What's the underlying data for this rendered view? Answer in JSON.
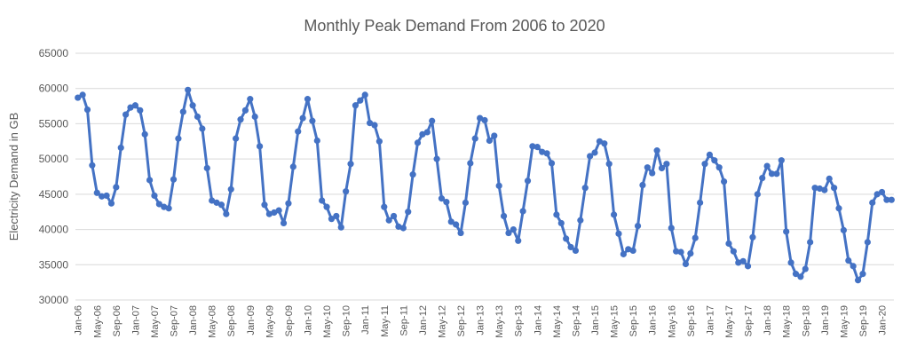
{
  "chart_data": {
    "type": "line",
    "title": "Monthly Peak Demand From 2006 to 2020",
    "xlabel": "",
    "ylabel": "Electricity Demand  in GB",
    "ylim": [
      30000,
      65000
    ],
    "y_ticks": [
      "30000",
      "35000",
      "40000",
      "45000",
      "50000",
      "55000",
      "60000",
      "65000"
    ],
    "grid": true,
    "legend": "none",
    "line_color": "#4472c4",
    "x_tick_labels": [
      "Jan-06",
      "May-06",
      "Sep-06",
      "Jan-07",
      "May-07",
      "Sep-07",
      "Jan-08",
      "May-08",
      "Sep-08",
      "Jan-09",
      "May-09",
      "Sep-09",
      "Jan-10",
      "May-10",
      "Sep-10",
      "Jan-11",
      "May-11",
      "Sep-11",
      "Jan-12",
      "May-12",
      "Sep-12",
      "Jan-13",
      "May-13",
      "Sep-13",
      "Jan-14",
      "May-14",
      "Sep-14",
      "Jan-15",
      "May-15",
      "Sep-15",
      "Jan-16",
      "May-16",
      "Sep-16",
      "Jan-17",
      "May-17",
      "Sep-17",
      "Jan-18",
      "May-18",
      "Sep-18",
      "Jan-19",
      "May-19",
      "Sep-19",
      "Jan-20"
    ],
    "x_start": "Jan-06",
    "x_end": "Feb-20",
    "series": [
      {
        "values": [
          58700,
          59100,
          57000,
          49100,
          45200,
          44700,
          44800,
          43700,
          46000,
          51600,
          56300,
          57300,
          57600,
          56900,
          53500,
          47000,
          44800,
          43600,
          43200,
          43000,
          47100,
          52900,
          56700,
          59800,
          57600,
          56000,
          54300,
          48700,
          44100,
          43800,
          43500,
          42200,
          45700,
          52900,
          55600,
          56900,
          58500,
          56000,
          51800,
          43500,
          42200,
          42400,
          42700,
          40900,
          43700,
          48900,
          53900,
          55800,
          58500,
          55400,
          52600,
          44100,
          43200,
          41500,
          41900,
          40300,
          45400,
          49300,
          57600,
          58300,
          59100,
          55100,
          54800,
          52500,
          43200,
          41300,
          41900,
          40400,
          40200,
          42500,
          47800,
          52300,
          53500,
          53800,
          55400,
          50000,
          44400,
          43900,
          41100,
          40700,
          39500,
          43800,
          49400,
          52900,
          55800,
          55500,
          52600,
          53300,
          46200,
          41900,
          39500,
          40000,
          38400,
          42600,
          46900,
          51800,
          51700,
          51000,
          50800,
          49400,
          42100,
          40900,
          38700,
          37500,
          37000,
          41300,
          45900,
          50400,
          50900,
          52500,
          52200,
          49300,
          42100,
          39400,
          36500,
          37200,
          37000,
          40500,
          46300,
          48800,
          48000,
          51200,
          48700,
          49300,
          40200,
          36900,
          36800,
          35100,
          36600,
          38800,
          43800,
          49300,
          50600,
          49800,
          48800,
          46800,
          38000,
          36900,
          35300,
          35500,
          34800,
          38900,
          45000,
          47300,
          49000,
          47900,
          47900,
          49800,
          39700,
          35300,
          33700,
          33300,
          34400,
          38200,
          45900,
          45800,
          45600,
          47200,
          45900,
          43000,
          39900,
          35600,
          34800,
          32800,
          33700,
          38200,
          43800,
          45000,
          45300,
          44200,
          44200
        ]
      }
    ]
  }
}
